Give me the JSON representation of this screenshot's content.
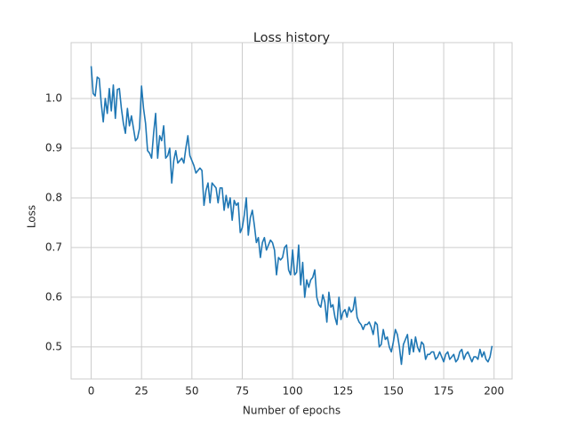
{
  "chart_data": {
    "type": "line",
    "title": "Loss history",
    "x_label": "Number of epochs",
    "y_label": "Loss",
    "color": "#1f77b4",
    "grid": true,
    "xlim": [
      -9.95,
      208.95
    ],
    "ylim": [
      0.4355,
      1.1125
    ],
    "xticks": [
      0,
      25,
      50,
      75,
      100,
      125,
      150,
      175,
      200
    ],
    "yticks": [
      0.5,
      0.6,
      0.7,
      0.8,
      0.9,
      {
        "value": 1,
        "label": "1.0"
      }
    ],
    "x": [
      0,
      1,
      2,
      3,
      4,
      5,
      6,
      7,
      8,
      9,
      10,
      11,
      12,
      13,
      14,
      15,
      16,
      17,
      18,
      19,
      20,
      21,
      22,
      23,
      24,
      25,
      26,
      27,
      28,
      29,
      30,
      31,
      32,
      33,
      34,
      35,
      36,
      37,
      38,
      39,
      40,
      41,
      42,
      43,
      44,
      45,
      46,
      47,
      48,
      49,
      50,
      51,
      52,
      53,
      54,
      55,
      56,
      57,
      58,
      59,
      60,
      61,
      62,
      63,
      64,
      65,
      66,
      67,
      68,
      69,
      70,
      71,
      72,
      73,
      74,
      75,
      76,
      77,
      78,
      79,
      80,
      81,
      82,
      83,
      84,
      85,
      86,
      87,
      88,
      89,
      90,
      91,
      92,
      93,
      94,
      95,
      96,
      97,
      98,
      99,
      100,
      101,
      102,
      103,
      104,
      105,
      106,
      107,
      108,
      109,
      110,
      111,
      112,
      113,
      114,
      115,
      116,
      117,
      118,
      119,
      120,
      121,
      122,
      123,
      124,
      125,
      126,
      127,
      128,
      129,
      130,
      131,
      132,
      133,
      134,
      135,
      136,
      137,
      138,
      139,
      140,
      141,
      142,
      143,
      144,
      145,
      146,
      147,
      148,
      149,
      150,
      151,
      152,
      153,
      154,
      155,
      156,
      157,
      158,
      159,
      160,
      161,
      162,
      163,
      164,
      165,
      166,
      167,
      168,
      169,
      170,
      171,
      172,
      173,
      174,
      175,
      176,
      177,
      178,
      179,
      180,
      181,
      182,
      183,
      184,
      185,
      186,
      187,
      188,
      189,
      190,
      191,
      192,
      193,
      194,
      195,
      196,
      197,
      198,
      199
    ],
    "values": [
      1.065,
      1.01,
      1.005,
      1.043,
      1.04,
      0.99,
      0.953,
      1.0,
      0.97,
      1.02,
      0.975,
      1.027,
      0.96,
      1.018,
      1.02,
      0.98,
      0.95,
      0.93,
      0.98,
      0.945,
      0.965,
      0.94,
      0.915,
      0.92,
      0.94,
      1.025,
      0.98,
      0.95,
      0.895,
      0.89,
      0.88,
      0.93,
      0.97,
      0.88,
      0.925,
      0.915,
      0.945,
      0.88,
      0.885,
      0.9,
      0.83,
      0.875,
      0.895,
      0.87,
      0.875,
      0.88,
      0.87,
      0.9,
      0.925,
      0.885,
      0.875,
      0.865,
      0.85,
      0.855,
      0.86,
      0.855,
      0.785,
      0.815,
      0.83,
      0.79,
      0.83,
      0.825,
      0.82,
      0.79,
      0.82,
      0.82,
      0.775,
      0.805,
      0.78,
      0.8,
      0.755,
      0.795,
      0.785,
      0.79,
      0.73,
      0.74,
      0.765,
      0.8,
      0.725,
      0.76,
      0.775,
      0.745,
      0.71,
      0.72,
      0.68,
      0.71,
      0.72,
      0.695,
      0.705,
      0.715,
      0.71,
      0.695,
      0.645,
      0.68,
      0.675,
      0.68,
      0.7,
      0.705,
      0.655,
      0.645,
      0.695,
      0.645,
      0.65,
      0.705,
      0.625,
      0.67,
      0.6,
      0.635,
      0.62,
      0.635,
      0.64,
      0.655,
      0.6,
      0.585,
      0.58,
      0.605,
      0.59,
      0.55,
      0.61,
      0.58,
      0.585,
      0.56,
      0.545,
      0.6,
      0.555,
      0.57,
      0.575,
      0.56,
      0.58,
      0.57,
      0.575,
      0.6,
      0.56,
      0.55,
      0.545,
      0.535,
      0.545,
      0.545,
      0.55,
      0.54,
      0.525,
      0.55,
      0.545,
      0.5,
      0.505,
      0.535,
      0.515,
      0.52,
      0.5,
      0.49,
      0.51,
      0.535,
      0.525,
      0.5,
      0.465,
      0.505,
      0.515,
      0.525,
      0.485,
      0.515,
      0.49,
      0.52,
      0.5,
      0.49,
      0.51,
      0.505,
      0.475,
      0.485,
      0.485,
      0.49,
      0.49,
      0.475,
      0.48,
      0.49,
      0.48,
      0.47,
      0.485,
      0.49,
      0.475,
      0.48,
      0.485,
      0.47,
      0.475,
      0.49,
      0.495,
      0.475,
      0.485,
      0.49,
      0.48,
      0.47,
      0.48,
      0.48,
      0.475,
      0.495,
      0.48,
      0.49,
      0.475,
      0.47,
      0.48,
      0.502
    ]
  }
}
